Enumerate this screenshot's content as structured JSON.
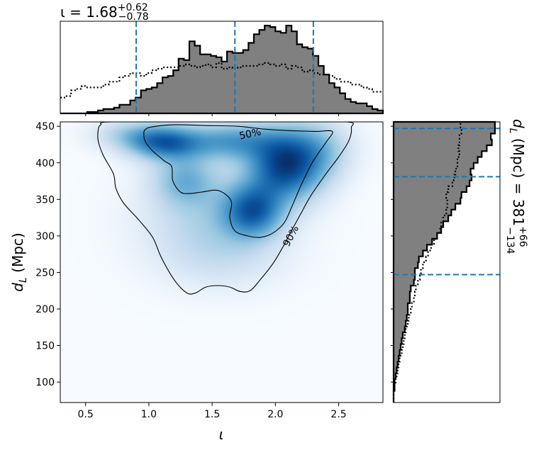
{
  "chart_data": {
    "type": "heatmap",
    "description_free": true,
    "joint": {
      "xlabel": "ι",
      "ylabel_main": "d",
      "ylabel_sub": "L",
      "ylabel_unit": " (Mpc)",
      "xlim": [
        0.3,
        2.85
      ],
      "ylim": [
        72,
        456
      ],
      "xticks": [
        0.5,
        1.0,
        1.5,
        2.0,
        2.5
      ],
      "xtick_labels": [
        "0.5",
        "1.0",
        "1.5",
        "2.0",
        "2.5"
      ],
      "yticks": [
        100,
        150,
        200,
        250,
        300,
        350,
        400,
        450
      ],
      "ytick_labels": [
        "100",
        "150",
        "200",
        "250",
        "300",
        "350",
        "400",
        "450"
      ],
      "colormap": "Blues",
      "density_blobs": [
        {
          "x": 2.08,
          "y": 397,
          "sx": 0.2,
          "sy": 32,
          "w": 1.0
        },
        {
          "x": 1.82,
          "y": 335,
          "sx": 0.16,
          "sy": 25,
          "w": 0.75
        },
        {
          "x": 1.12,
          "y": 428,
          "sx": 0.2,
          "sy": 16,
          "w": 0.8
        },
        {
          "x": 1.66,
          "y": 430,
          "sx": 0.26,
          "sy": 18,
          "w": 0.55
        },
        {
          "x": 1.28,
          "y": 378,
          "sx": 0.17,
          "sy": 24,
          "w": 0.4
        },
        {
          "x": 1.5,
          "y": 325,
          "sx": 0.36,
          "sy": 45,
          "w": 0.28
        },
        {
          "x": 1.58,
          "y": 270,
          "sx": 0.32,
          "sy": 30,
          "w": 0.11
        },
        {
          "x": 2.35,
          "y": 420,
          "sx": 0.18,
          "sy": 28,
          "w": 0.3
        },
        {
          "x": 0.85,
          "y": 440,
          "sx": 0.2,
          "sy": 14,
          "w": 0.25
        }
      ],
      "contours": [
        {
          "level": "50%",
          "label_pos": [
            1.8,
            440
          ],
          "label_angle": -12,
          "points": [
            [
              0.97,
              445
            ],
            [
              1.02,
              449
            ],
            [
              1.2,
              452
            ],
            [
              1.45,
              451
            ],
            [
              1.7,
              450
            ],
            [
              1.92,
              446
            ],
            [
              2.12,
              444
            ],
            [
              2.32,
              443
            ],
            [
              2.45,
              443
            ],
            [
              2.4,
              428
            ],
            [
              2.3,
              403
            ],
            [
              2.21,
              372
            ],
            [
              2.13,
              340
            ],
            [
              2.07,
              318
            ],
            [
              1.98,
              304
            ],
            [
              1.88,
              298
            ],
            [
              1.78,
              300
            ],
            [
              1.68,
              307
            ],
            [
              1.64,
              325
            ],
            [
              1.65,
              348
            ],
            [
              1.55,
              362
            ],
            [
              1.42,
              360
            ],
            [
              1.32,
              358
            ],
            [
              1.25,
              360
            ],
            [
              1.19,
              375
            ],
            [
              1.18,
              395
            ],
            [
              1.12,
              403
            ],
            [
              1.02,
              418
            ],
            [
              0.97,
              430
            ],
            [
              0.96,
              440
            ]
          ]
        },
        {
          "level": "90%",
          "label_pos": [
            2.12,
            300
          ],
          "label_angle": -62,
          "points": [
            [
              0.62,
              452
            ],
            [
              0.7,
              456
            ],
            [
              1.4,
              456
            ],
            [
              2.0,
              456
            ],
            [
              2.56,
              456
            ],
            [
              2.6,
              448
            ],
            [
              2.58,
              430
            ],
            [
              2.5,
              408
            ],
            [
              2.4,
              385
            ],
            [
              2.28,
              355
            ],
            [
              2.2,
              330
            ],
            [
              2.13,
              308
            ],
            [
              2.06,
              285
            ],
            [
              1.98,
              262
            ],
            [
              1.88,
              240
            ],
            [
              1.8,
              225
            ],
            [
              1.72,
              224
            ],
            [
              1.64,
              230
            ],
            [
              1.55,
              232
            ],
            [
              1.45,
              230
            ],
            [
              1.37,
              222
            ],
            [
              1.3,
              222
            ],
            [
              1.2,
              240
            ],
            [
              1.1,
              270
            ],
            [
              1.03,
              298
            ],
            [
              0.92,
              322
            ],
            [
              0.8,
              345
            ],
            [
              0.74,
              365
            ],
            [
              0.72,
              385
            ],
            [
              0.64,
              410
            ],
            [
              0.6,
              430
            ],
            [
              0.6,
              445
            ]
          ]
        }
      ]
    },
    "top_marginal": {
      "title": "ι = 1.68",
      "title_sup": "+0.62",
      "title_sub": "−0.78",
      "quantiles": [
        0.9,
        1.68,
        2.3
      ],
      "quantile_color": "#1f77b4",
      "bin_edges_start": 0.3,
      "bin_width": 0.0425,
      "posterior_counts": [
        0,
        0,
        0,
        0,
        0,
        1,
        1,
        2,
        3,
        3,
        4,
        6,
        6,
        9,
        11,
        16,
        17,
        18,
        21,
        25,
        26,
        30,
        38,
        37,
        50,
        47,
        41,
        41,
        40,
        39,
        36,
        43,
        42,
        42,
        44,
        49,
        55,
        58,
        61,
        60,
        57,
        56,
        61,
        57,
        48,
        46,
        45,
        40,
        33,
        27,
        21,
        18,
        14,
        10,
        8,
        7,
        7,
        5,
        3,
        2
      ],
      "prior_counts": [
        11,
        12,
        16,
        17,
        19,
        18,
        18,
        18,
        20,
        22,
        22,
        25,
        26,
        28,
        28,
        26,
        28,
        30,
        31,
        32,
        32,
        32,
        33,
        34,
        33,
        32,
        33,
        34,
        32,
        35,
        31,
        32,
        31,
        32,
        33,
        33,
        33,
        34,
        35,
        34,
        33,
        34,
        31,
        33,
        32,
        29,
        30,
        28,
        27,
        27,
        26,
        24,
        22,
        22,
        20,
        20,
        18,
        17,
        15,
        15
      ],
      "ymax": 64
    },
    "right_marginal": {
      "label_main": "d",
      "label_sub": "L",
      "label_rest": " (Mpc) = 381",
      "label_sup": "+66",
      "label_sub2": "−134",
      "quantiles": [
        247,
        381,
        447
      ],
      "quantile_color": "#1f77b4",
      "bin_edges_start": 72,
      "bin_width": 8,
      "posterior_counts": [
        0,
        0,
        1,
        1,
        2,
        3,
        4,
        5,
        6,
        7,
        8,
        9,
        11,
        12,
        13,
        14,
        14,
        16,
        16,
        17,
        20,
        21,
        21,
        24,
        25,
        29,
        33,
        38,
        43,
        47,
        49,
        54,
        57,
        61,
        66,
        67,
        72,
        75,
        77,
        76,
        79,
        83,
        87,
        92,
        97,
        96,
        100,
        100
      ],
      "prior_counts": [
        0,
        0,
        1,
        2,
        3,
        4,
        5,
        6,
        8,
        9,
        10,
        11,
        12,
        14,
        15,
        17,
        18,
        20,
        21,
        22,
        24,
        26,
        27,
        29,
        32,
        34,
        37,
        40,
        43,
        46,
        47,
        49,
        52,
        53,
        53,
        52,
        54,
        58,
        60,
        61,
        63,
        63,
        65,
        64,
        65,
        65,
        67,
        66
      ],
      "xmax": 105
    }
  }
}
